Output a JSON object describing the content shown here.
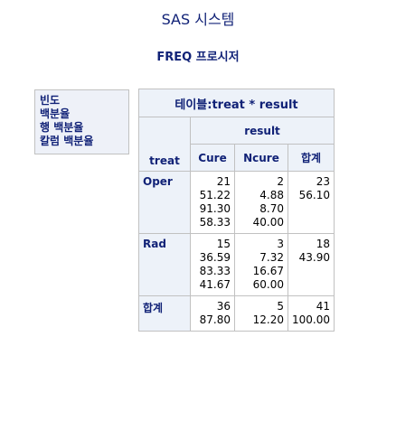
{
  "title": "SAS 시스템",
  "subtitle": "FREQ 프로시저",
  "legend": [
    "빈도",
    "백분율",
    "행 백분율",
    "칼럼 백분율"
  ],
  "table": {
    "caption": "테이블:treat * result",
    "col_var": "result",
    "row_var": "treat",
    "columns": [
      "Cure",
      "Ncure",
      "합계"
    ],
    "rows": [
      {
        "label": "Oper",
        "cells": [
          [
            "21",
            "51.22",
            "91.30",
            "58.33"
          ],
          [
            "2",
            "4.88",
            "8.70",
            "40.00"
          ],
          [
            "23",
            "56.10"
          ]
        ]
      },
      {
        "label": "Rad",
        "cells": [
          [
            "15",
            "36.59",
            "83.33",
            "41.67"
          ],
          [
            "3",
            "7.32",
            "16.67",
            "60.00"
          ],
          [
            "18",
            "43.90"
          ]
        ]
      },
      {
        "label": "합계",
        "cells": [
          [
            "36",
            "87.80"
          ],
          [
            "5",
            "12.20"
          ],
          [
            "41",
            "100.00"
          ]
        ]
      }
    ]
  }
}
